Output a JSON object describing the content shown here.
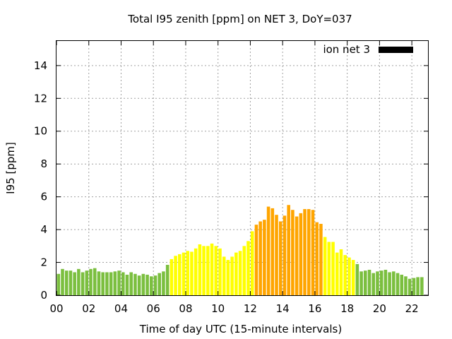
{
  "chart_data": {
    "type": "bar",
    "title": "Total I95 zenith [ppm] on NET 3, DoY=037",
    "xlabel": "Time of day UTC (15-minute intervals)",
    "ylabel": "I95 [ppm]",
    "xlim": [
      0,
      23
    ],
    "ylim": [
      0,
      15.5
    ],
    "x_ticks": [
      {
        "value": 0,
        "label": "00"
      },
      {
        "value": 2,
        "label": "02"
      },
      {
        "value": 4,
        "label": "04"
      },
      {
        "value": 6,
        "label": "06"
      },
      {
        "value": 8,
        "label": "08"
      },
      {
        "value": 10,
        "label": "10"
      },
      {
        "value": 12,
        "label": "12"
      },
      {
        "value": 14,
        "label": "14"
      },
      {
        "value": 16,
        "label": "16"
      },
      {
        "value": 18,
        "label": "18"
      },
      {
        "value": 20,
        "label": "20"
      },
      {
        "value": 22,
        "label": "22"
      }
    ],
    "y_ticks": [
      {
        "value": 0,
        "label": "0"
      },
      {
        "value": 2,
        "label": "2"
      },
      {
        "value": 4,
        "label": "4"
      },
      {
        "value": 6,
        "label": "6"
      },
      {
        "value": 8,
        "label": "8"
      },
      {
        "value": 10,
        "label": "10"
      },
      {
        "value": 12,
        "label": "12"
      },
      {
        "value": 14,
        "label": "14"
      }
    ],
    "grid": true,
    "legend": {
      "position": "top-right",
      "label": "ion net 3",
      "color": "#000000"
    },
    "colors": {
      "low": "#7bbf3f",
      "medium": "#ffff00",
      "high": "#ffa500"
    },
    "series": [
      {
        "name": "ion net 3",
        "bar_width_hours": 0.2,
        "bars": [
          {
            "x": 0.0,
            "y": 1.3,
            "level": "low"
          },
          {
            "x": 0.25,
            "y": 1.6,
            "level": "low"
          },
          {
            "x": 0.5,
            "y": 1.5,
            "level": "low"
          },
          {
            "x": 0.75,
            "y": 1.5,
            "level": "low"
          },
          {
            "x": 1.0,
            "y": 1.4,
            "level": "low"
          },
          {
            "x": 1.25,
            "y": 1.6,
            "level": "low"
          },
          {
            "x": 1.5,
            "y": 1.4,
            "level": "low"
          },
          {
            "x": 1.75,
            "y": 1.5,
            "level": "low"
          },
          {
            "x": 2.0,
            "y": 1.6,
            "level": "low"
          },
          {
            "x": 2.25,
            "y": 1.65,
            "level": "low"
          },
          {
            "x": 2.5,
            "y": 1.45,
            "level": "low"
          },
          {
            "x": 2.75,
            "y": 1.4,
            "level": "low"
          },
          {
            "x": 3.0,
            "y": 1.4,
            "level": "low"
          },
          {
            "x": 3.25,
            "y": 1.4,
            "level": "low"
          },
          {
            "x": 3.5,
            "y": 1.45,
            "level": "low"
          },
          {
            "x": 3.75,
            "y": 1.5,
            "level": "low"
          },
          {
            "x": 4.0,
            "y": 1.4,
            "level": "low"
          },
          {
            "x": 4.25,
            "y": 1.25,
            "level": "low"
          },
          {
            "x": 4.5,
            "y": 1.4,
            "level": "low"
          },
          {
            "x": 4.75,
            "y": 1.3,
            "level": "low"
          },
          {
            "x": 5.0,
            "y": 1.2,
            "level": "low"
          },
          {
            "x": 5.25,
            "y": 1.3,
            "level": "low"
          },
          {
            "x": 5.5,
            "y": 1.25,
            "level": "low"
          },
          {
            "x": 5.75,
            "y": 1.15,
            "level": "low"
          },
          {
            "x": 6.0,
            "y": 1.2,
            "level": "low"
          },
          {
            "x": 6.25,
            "y": 1.35,
            "level": "low"
          },
          {
            "x": 6.5,
            "y": 1.45,
            "level": "low"
          },
          {
            "x": 6.75,
            "y": 1.85,
            "level": "low"
          },
          {
            "x": 7.0,
            "y": 2.2,
            "level": "medium"
          },
          {
            "x": 7.25,
            "y": 2.4,
            "level": "medium"
          },
          {
            "x": 7.5,
            "y": 2.5,
            "level": "medium"
          },
          {
            "x": 7.75,
            "y": 2.6,
            "level": "medium"
          },
          {
            "x": 8.0,
            "y": 2.7,
            "level": "medium"
          },
          {
            "x": 8.25,
            "y": 2.65,
            "level": "medium"
          },
          {
            "x": 8.5,
            "y": 2.85,
            "level": "medium"
          },
          {
            "x": 8.75,
            "y": 3.1,
            "level": "medium"
          },
          {
            "x": 9.0,
            "y": 3.0,
            "level": "medium"
          },
          {
            "x": 9.25,
            "y": 3.0,
            "level": "medium"
          },
          {
            "x": 9.5,
            "y": 3.15,
            "level": "medium"
          },
          {
            "x": 9.75,
            "y": 3.0,
            "level": "medium"
          },
          {
            "x": 10.0,
            "y": 2.85,
            "level": "medium"
          },
          {
            "x": 10.25,
            "y": 2.35,
            "level": "medium"
          },
          {
            "x": 10.5,
            "y": 2.15,
            "level": "medium"
          },
          {
            "x": 10.75,
            "y": 2.35,
            "level": "medium"
          },
          {
            "x": 11.0,
            "y": 2.6,
            "level": "medium"
          },
          {
            "x": 11.25,
            "y": 2.7,
            "level": "medium"
          },
          {
            "x": 11.5,
            "y": 3.0,
            "level": "medium"
          },
          {
            "x": 11.75,
            "y": 3.3,
            "level": "medium"
          },
          {
            "x": 12.0,
            "y": 3.9,
            "level": "medium"
          },
          {
            "x": 12.25,
            "y": 4.3,
            "level": "high"
          },
          {
            "x": 12.5,
            "y": 4.5,
            "level": "high"
          },
          {
            "x": 12.75,
            "y": 4.6,
            "level": "high"
          },
          {
            "x": 13.0,
            "y": 5.4,
            "level": "high"
          },
          {
            "x": 13.25,
            "y": 5.3,
            "level": "high"
          },
          {
            "x": 13.5,
            "y": 4.9,
            "level": "high"
          },
          {
            "x": 13.75,
            "y": 4.5,
            "level": "high"
          },
          {
            "x": 14.0,
            "y": 4.85,
            "level": "high"
          },
          {
            "x": 14.25,
            "y": 5.5,
            "level": "high"
          },
          {
            "x": 14.5,
            "y": 5.2,
            "level": "high"
          },
          {
            "x": 14.75,
            "y": 4.8,
            "level": "high"
          },
          {
            "x": 15.0,
            "y": 5.0,
            "level": "high"
          },
          {
            "x": 15.25,
            "y": 5.25,
            "level": "high"
          },
          {
            "x": 15.5,
            "y": 5.25,
            "level": "high"
          },
          {
            "x": 15.75,
            "y": 5.2,
            "level": "high"
          },
          {
            "x": 16.0,
            "y": 4.45,
            "level": "high"
          },
          {
            "x": 16.25,
            "y": 4.35,
            "level": "high"
          },
          {
            "x": 16.5,
            "y": 3.55,
            "level": "medium"
          },
          {
            "x": 16.75,
            "y": 3.25,
            "level": "medium"
          },
          {
            "x": 17.0,
            "y": 3.25,
            "level": "medium"
          },
          {
            "x": 17.25,
            "y": 2.6,
            "level": "medium"
          },
          {
            "x": 17.5,
            "y": 2.8,
            "level": "medium"
          },
          {
            "x": 17.75,
            "y": 2.45,
            "level": "medium"
          },
          {
            "x": 18.0,
            "y": 2.3,
            "level": "medium"
          },
          {
            "x": 18.25,
            "y": 2.15,
            "level": "medium"
          },
          {
            "x": 18.5,
            "y": 1.9,
            "level": "low"
          },
          {
            "x": 18.75,
            "y": 1.45,
            "level": "low"
          },
          {
            "x": 19.0,
            "y": 1.5,
            "level": "low"
          },
          {
            "x": 19.25,
            "y": 1.55,
            "level": "low"
          },
          {
            "x": 19.5,
            "y": 1.35,
            "level": "low"
          },
          {
            "x": 19.75,
            "y": 1.45,
            "level": "low"
          },
          {
            "x": 20.0,
            "y": 1.5,
            "level": "low"
          },
          {
            "x": 20.25,
            "y": 1.55,
            "level": "low"
          },
          {
            "x": 20.5,
            "y": 1.4,
            "level": "low"
          },
          {
            "x": 20.75,
            "y": 1.45,
            "level": "low"
          },
          {
            "x": 21.0,
            "y": 1.35,
            "level": "low"
          },
          {
            "x": 21.25,
            "y": 1.25,
            "level": "low"
          },
          {
            "x": 21.5,
            "y": 1.15,
            "level": "low"
          },
          {
            "x": 21.75,
            "y": 1.0,
            "level": "low"
          },
          {
            "x": 22.0,
            "y": 1.05,
            "level": "low"
          },
          {
            "x": 22.25,
            "y": 1.1,
            "level": "low"
          },
          {
            "x": 22.5,
            "y": 1.1,
            "level": "low"
          }
        ]
      }
    ]
  }
}
